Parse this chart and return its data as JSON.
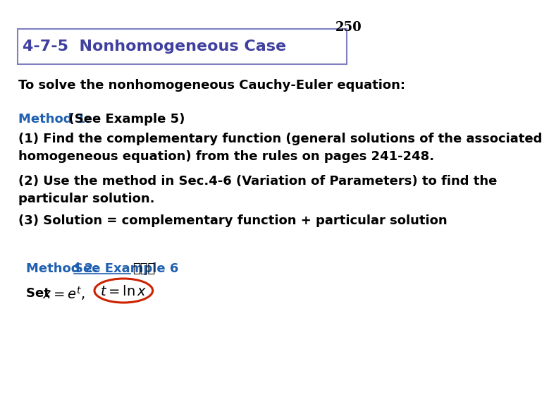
{
  "page_number": "250",
  "page_number_color": "#000000",
  "background_color": "#ffffff",
  "title_text": "4-7-5  Nonhomogeneous Case",
  "title_color": "#4040a0",
  "title_box_edge_color": "#8080c0",
  "body_text_color": "#000000",
  "blue_text_color": "#2060b0",
  "para0": "To solve the nonhomogeneous Cauchy-Euler equation:",
  "method1_label": "Method 1:",
  "method1_rest": "  (See Example 5)",
  "para1": "(1) Find the complementary function (general solutions of the associated\nhomogeneous equation) from the rules on pages 241-248.",
  "para2": "(2) Use the method in Sec.4-6 (Variation of Parameters) to find the\nparticular solution.",
  "para3": "(3) Solution = complementary function + particular solution",
  "method2_label": "Method 2:  ",
  "method2_see": "See Example 6",
  "method2_tail": "，重要",
  "circle_color": "#cc2200",
  "font_size_title": 16,
  "font_size_body": 13,
  "font_size_page": 13
}
